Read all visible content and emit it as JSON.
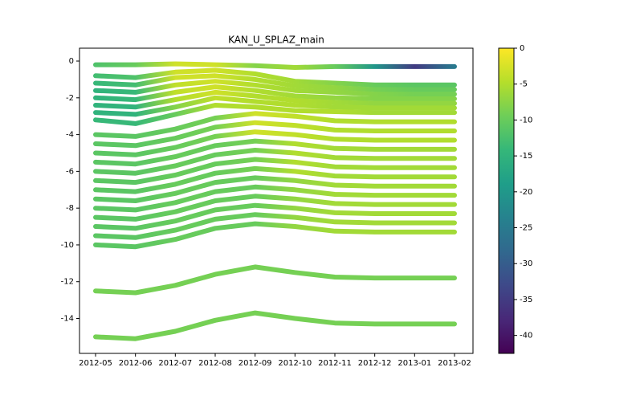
{
  "chart_data": {
    "type": "line",
    "title": "KAN_U_SPLAZ_main",
    "x": [
      "2012-05",
      "2012-06",
      "2012-07",
      "2012-08",
      "2012-09",
      "2012-10",
      "2012-11",
      "2012-12",
      "2013-01",
      "2013-02"
    ],
    "xlim": [
      "2012-05",
      "2013-02"
    ],
    "xticks": [
      "2012-05",
      "2012-06",
      "2012-07",
      "2012-08",
      "2012-09",
      "2012-10",
      "2012-11",
      "2012-12",
      "2013-01",
      "2013-02"
    ],
    "ylim": [
      -15.9,
      0.7
    ],
    "yticks": [
      0,
      -2,
      -4,
      -6,
      -8,
      -10,
      -12,
      -14
    ],
    "colormap": "viridis",
    "clim": [
      -42.5,
      0
    ],
    "cticks": [
      0,
      -5,
      -10,
      -15,
      -20,
      -25,
      -30,
      -35,
      -40
    ],
    "series": [
      {
        "values": [
          -0.2,
          -0.2,
          -0.15,
          -0.2,
          -0.25,
          -0.35,
          -0.3,
          -0.3,
          -0.3,
          -0.3
        ],
        "c": [
          -12,
          -10,
          -3,
          -3,
          -8,
          -6,
          -10,
          -20,
          -35,
          -25
        ]
      },
      {
        "values": [
          -0.8,
          -0.9,
          -0.6,
          -0.5,
          -0.7,
          -1.1,
          -1.2,
          -1.3,
          -1.3,
          -1.3
        ],
        "c": [
          -13,
          -12,
          -3,
          -3,
          -5,
          -6,
          -8,
          -10,
          -11,
          -11
        ]
      },
      {
        "values": [
          -1.2,
          -1.3,
          -0.9,
          -0.8,
          -1.0,
          -1.35,
          -1.45,
          -1.55,
          -1.55,
          -1.55
        ],
        "c": [
          -14,
          -13,
          -3,
          -3,
          -5,
          -6,
          -7,
          -9,
          -10,
          -10
        ]
      },
      {
        "values": [
          -1.6,
          -1.7,
          -1.3,
          -1.1,
          -1.3,
          -1.6,
          -1.7,
          -1.8,
          -1.8,
          -1.8
        ],
        "c": [
          -15,
          -14,
          -4,
          -3,
          -5,
          -6,
          -7,
          -8,
          -9,
          -9
        ]
      },
      {
        "values": [
          -2.0,
          -2.1,
          -1.7,
          -1.4,
          -1.6,
          -1.9,
          -2.0,
          -2.05,
          -2.05,
          -2.05
        ],
        "c": [
          -15,
          -14,
          -4,
          -3,
          -5,
          -6,
          -7,
          -8,
          -8,
          -8
        ]
      },
      {
        "values": [
          -2.4,
          -2.5,
          -2.1,
          -1.7,
          -1.9,
          -2.15,
          -2.25,
          -2.3,
          -2.3,
          -2.3
        ],
        "c": [
          -15,
          -15,
          -5,
          -3,
          -5,
          -5,
          -6,
          -7,
          -7,
          -7
        ]
      },
      {
        "values": [
          -2.8,
          -2.9,
          -2.5,
          -2.0,
          -2.2,
          -2.4,
          -2.5,
          -2.55,
          -2.55,
          -2.55
        ],
        "c": [
          -15,
          -15,
          -8,
          -4,
          -5,
          -5,
          -6,
          -6,
          -6,
          -6
        ]
      },
      {
        "values": [
          -3.2,
          -3.4,
          -2.9,
          -2.4,
          -2.5,
          -2.7,
          -2.75,
          -2.8,
          -2.8,
          -2.8
        ],
        "c": [
          -14,
          -14,
          -10,
          -5,
          -5,
          -5,
          -5,
          -6,
          -6,
          -6
        ]
      },
      {
        "values": [
          -4.0,
          -4.1,
          -3.7,
          -3.1,
          -2.85,
          -3.0,
          -3.25,
          -3.3,
          -3.3,
          -3.3
        ],
        "c": [
          -11,
          -11,
          -10,
          -9,
          -3,
          -4,
          -5,
          -5,
          -5,
          -5
        ]
      },
      {
        "values": [
          -4.5,
          -4.6,
          -4.2,
          -3.6,
          -3.35,
          -3.5,
          -3.75,
          -3.8,
          -3.8,
          -3.8
        ],
        "c": [
          -11,
          -11,
          -10,
          -9,
          -3,
          -4,
          -5,
          -5,
          -5,
          -5
        ]
      },
      {
        "values": [
          -5.0,
          -5.1,
          -4.7,
          -4.1,
          -3.85,
          -4.0,
          -4.25,
          -4.3,
          -4.3,
          -4.3
        ],
        "c": [
          -11,
          -11,
          -10,
          -9,
          -3,
          -4,
          -5,
          -5,
          -5,
          -5
        ]
      },
      {
        "values": [
          -5.5,
          -5.6,
          -5.2,
          -4.6,
          -4.35,
          -4.5,
          -4.75,
          -4.8,
          -4.8,
          -4.8
        ],
        "c": [
          -11,
          -11,
          -10,
          -10,
          -9,
          -5,
          -6,
          -6,
          -6,
          -6
        ]
      },
      {
        "values": [
          -6.0,
          -6.1,
          -5.7,
          -5.1,
          -4.85,
          -5.0,
          -5.25,
          -5.3,
          -5.3,
          -5.3
        ],
        "c": [
          -11,
          -11,
          -10,
          -10,
          -9,
          -5,
          -6,
          -6,
          -6,
          -6
        ]
      },
      {
        "values": [
          -6.5,
          -6.6,
          -6.2,
          -5.6,
          -5.35,
          -5.5,
          -5.75,
          -5.8,
          -5.8,
          -5.8
        ],
        "c": [
          -11,
          -11,
          -10,
          -10,
          -9,
          -5,
          -6,
          -6,
          -6,
          -6
        ]
      },
      {
        "values": [
          -7.0,
          -7.1,
          -6.7,
          -6.1,
          -5.85,
          -6.0,
          -6.25,
          -6.3,
          -6.3,
          -6.3
        ],
        "c": [
          -11,
          -11,
          -10,
          -10,
          -9,
          -5,
          -6,
          -6,
          -6,
          -6
        ]
      },
      {
        "values": [
          -7.5,
          -7.6,
          -7.2,
          -6.6,
          -6.35,
          -6.5,
          -6.75,
          -6.8,
          -6.8,
          -6.8
        ],
        "c": [
          -11,
          -11,
          -10,
          -10,
          -10,
          -7,
          -6,
          -6,
          -6,
          -6
        ]
      },
      {
        "values": [
          -8.0,
          -8.1,
          -7.7,
          -7.1,
          -6.85,
          -7.0,
          -7.25,
          -7.3,
          -7.3,
          -7.3
        ],
        "c": [
          -11,
          -11,
          -10,
          -10,
          -10,
          -7,
          -6,
          -6,
          -6,
          -6
        ]
      },
      {
        "values": [
          -8.5,
          -8.6,
          -8.2,
          -7.6,
          -7.35,
          -7.5,
          -7.75,
          -7.8,
          -7.8,
          -7.8
        ],
        "c": [
          -11,
          -11,
          -10,
          -10,
          -10,
          -7,
          -6,
          -6,
          -6,
          -6
        ]
      },
      {
        "values": [
          -9.0,
          -9.1,
          -8.7,
          -8.1,
          -7.85,
          -8.0,
          -8.25,
          -8.3,
          -8.3,
          -8.3
        ],
        "c": [
          -11,
          -11,
          -10,
          -10,
          -10,
          -7,
          -6,
          -6,
          -6,
          -6
        ]
      },
      {
        "values": [
          -9.5,
          -9.6,
          -9.2,
          -8.6,
          -8.35,
          -8.5,
          -8.75,
          -8.8,
          -8.8,
          -8.8
        ],
        "c": [
          -11,
          -11,
          -10,
          -10,
          -10,
          -7,
          -6,
          -6,
          -6,
          -6
        ]
      },
      {
        "values": [
          -10.0,
          -10.1,
          -9.7,
          -9.1,
          -8.85,
          -9.0,
          -9.25,
          -9.3,
          -9.3,
          -9.3
        ],
        "c": [
          -11,
          -11,
          -10,
          -10,
          -10,
          -7,
          -6,
          -6,
          -6,
          -6
        ]
      },
      {
        "values": [
          -12.5,
          -12.6,
          -12.2,
          -11.6,
          -11.2,
          -11.5,
          -11.75,
          -11.8,
          -11.8,
          -11.8
        ],
        "c": [
          -9,
          -9,
          -9,
          -9,
          -9,
          -9,
          -9,
          -9,
          -9,
          -9
        ]
      },
      {
        "values": [
          -15.0,
          -15.1,
          -14.7,
          -14.1,
          -13.7,
          -14.0,
          -14.25,
          -14.3,
          -14.3,
          -14.3
        ],
        "c": [
          -9,
          -9,
          -9,
          -9,
          -9,
          -9,
          -9,
          -9,
          -9,
          -9
        ]
      }
    ]
  }
}
